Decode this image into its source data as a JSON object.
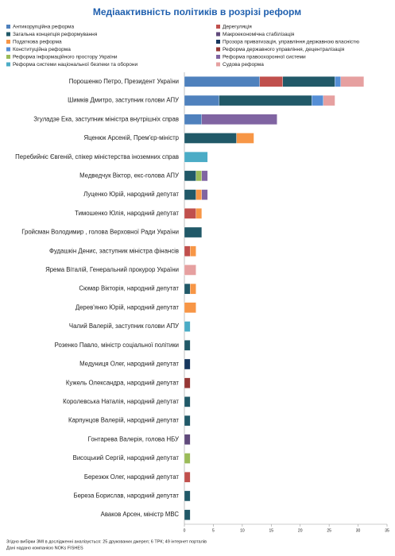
{
  "chart_data": {
    "type": "stacked-barh",
    "title": "Медіаактивність політиків в розрізі реформ",
    "categories": [
      "Порошенко Петро,  Президент України",
      "Шимків Дмитро,  заступник голови АПУ",
      "Згуладзе Ека,  заступник міністра внутрішніх справ",
      "Яценюк Арсеній,  Прем'єр-міністр",
      "Перебийніс Євгеній, спікер міністерства іноземних справ",
      "Медведчук Віктор,  екс-голова АПУ",
      "Луценко Юрій,  народний депутат",
      "Тимошенко Юлія,  народний депутат",
      "Гройсман Володимир ,  голова Верховної Ради України",
      "Фудашкін Денис, заступник міністра фінансів",
      "Ярема Віталій,  Генеральний прокурор України",
      "Сюмар Вікторія,  народний депутат",
      "Дерев'янко Юрій,  народний депутат",
      "Чалий Валерій,  заступник голови  АПУ",
      "Розенко Павло,  міністр соціальної політики",
      "Медуниця Олег,  народний депутат",
      "Кужель Олександра,  народний депутат",
      "Королевська Наталія,  народний депутат",
      "Карпунцов Валерій,  народний депутат",
      "Гонтарева Валерія,  голова НБУ",
      "Висоцький Сергій,  народний депутат",
      "Березюк Олег,  народний депутат",
      "Береза Борислав,  народний депутат",
      "Аваков Арсен,  міністр МВС"
    ],
    "series": [
      {
        "name": "Антикорупційна реформа",
        "color": "#4f81bd",
        "values": [
          13,
          6,
          3,
          null,
          null,
          null,
          null,
          null,
          null,
          null,
          null,
          null,
          null,
          null,
          null,
          null,
          null,
          null,
          null,
          null,
          null,
          null,
          null,
          null
        ]
      },
      {
        "name": "Дерегуляція",
        "color": "#c0504d",
        "values": [
          4,
          null,
          null,
          null,
          null,
          null,
          null,
          2,
          null,
          1,
          null,
          null,
          null,
          null,
          null,
          null,
          null,
          null,
          null,
          null,
          null,
          1,
          null,
          null
        ]
      },
      {
        "name": "Загальна концепція реформування",
        "color": "#215968",
        "values": [
          9,
          16,
          null,
          9,
          null,
          2,
          2,
          null,
          3,
          null,
          null,
          1,
          null,
          null,
          1,
          null,
          null,
          1,
          1,
          null,
          null,
          null,
          1,
          1
        ]
      },
      {
        "name": "Макроекономічна стабілізація",
        "color": "#604a7b",
        "values": [
          null,
          null,
          null,
          null,
          null,
          null,
          null,
          null,
          null,
          null,
          null,
          null,
          null,
          null,
          null,
          null,
          null,
          null,
          null,
          1,
          null,
          null,
          null,
          null
        ]
      },
      {
        "name": "Податкова реформа",
        "color": "#f79646",
        "values": [
          null,
          null,
          null,
          3,
          null,
          null,
          1,
          1,
          null,
          1,
          null,
          1,
          2,
          null,
          null,
          null,
          null,
          null,
          null,
          null,
          null,
          null,
          null,
          null
        ]
      },
      {
        "name": "Прозора приватизація, управління державною власністю",
        "color": "#17375e",
        "values": [
          null,
          null,
          null,
          null,
          null,
          null,
          null,
          null,
          null,
          null,
          null,
          null,
          null,
          null,
          null,
          1,
          null,
          null,
          null,
          null,
          null,
          null,
          null,
          null
        ]
      },
      {
        "name": "Конституційна реформа",
        "color": "#558ed5",
        "values": [
          1,
          2,
          null,
          null,
          null,
          null,
          null,
          null,
          null,
          null,
          null,
          null,
          null,
          null,
          null,
          null,
          null,
          null,
          null,
          null,
          null,
          null,
          null,
          null
        ]
      },
      {
        "name": "Реформа державного управління, децентралізація",
        "color": "#953735",
        "values": [
          null,
          null,
          null,
          null,
          null,
          null,
          null,
          null,
          null,
          null,
          null,
          null,
          null,
          null,
          null,
          null,
          1,
          null,
          null,
          null,
          null,
          null,
          null,
          null
        ]
      },
      {
        "name": "Реформа інформаційного простору України",
        "color": "#9bbb59",
        "values": [
          null,
          null,
          null,
          null,
          null,
          1,
          null,
          null,
          null,
          null,
          null,
          null,
          null,
          null,
          null,
          null,
          null,
          null,
          null,
          null,
          1,
          null,
          null,
          null
        ]
      },
      {
        "name": "Реформа правоохоронної системи",
        "color": "#8064a2",
        "values": [
          null,
          null,
          13,
          null,
          null,
          1,
          1,
          null,
          null,
          null,
          null,
          null,
          null,
          null,
          null,
          null,
          null,
          null,
          null,
          null,
          null,
          null,
          null,
          null
        ]
      },
      {
        "name": "Реформа системи національної безпеки та оборони",
        "color": "#4bacc6",
        "values": [
          null,
          null,
          null,
          null,
          4,
          null,
          null,
          null,
          null,
          null,
          null,
          null,
          null,
          1,
          null,
          null,
          null,
          null,
          null,
          null,
          null,
          null,
          null,
          null
        ]
      },
      {
        "name": "Судова реформа",
        "color": "#e6a0a0",
        "values": [
          4,
          2,
          null,
          null,
          null,
          null,
          null,
          null,
          null,
          null,
          2,
          null,
          null,
          null,
          null,
          null,
          null,
          null,
          null,
          null,
          null,
          null,
          null,
          null
        ]
      }
    ],
    "xlim": [
      0,
      35
    ],
    "xticks": [
      0,
      5,
      10,
      15,
      20,
      25,
      30,
      35
    ],
    "notes": [
      "Згідно вибірки ЗМІ в дослідженні аналізується: 25 друкованих джерел; 6 ТРК; 49 інтернет порталів",
      "Дані надано компанією NOKs FISHES"
    ]
  }
}
